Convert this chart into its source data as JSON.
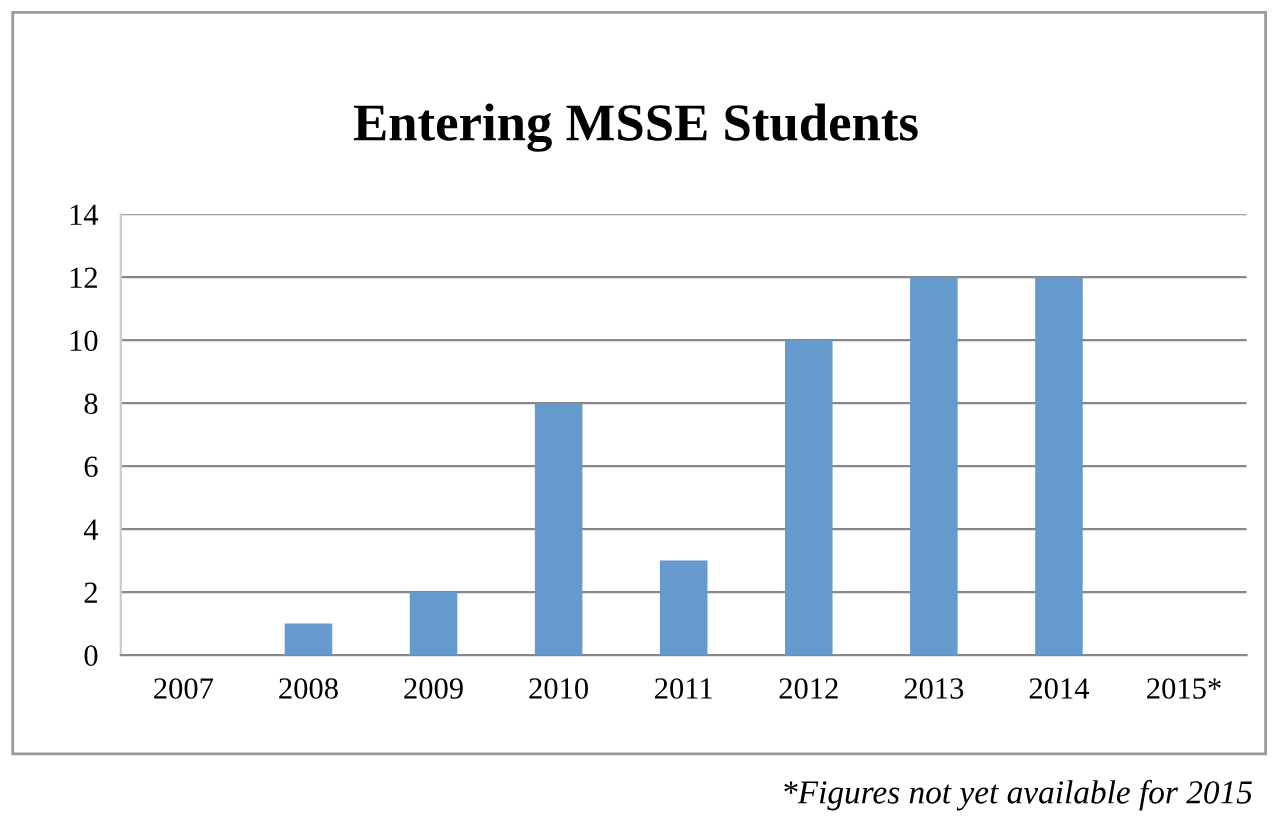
{
  "chart_data": {
    "type": "bar",
    "title": "Entering MSSE Students",
    "categories": [
      "2007",
      "2008",
      "2009",
      "2010",
      "2011",
      "2012",
      "2013",
      "2014",
      "2015*"
    ],
    "values": [
      0,
      1,
      2,
      8,
      3,
      10,
      12,
      12,
      null
    ],
    "color": "#6699cc",
    "ylim": [
      0,
      14
    ],
    "yticks": [
      0,
      2,
      4,
      6,
      8,
      10,
      12,
      14
    ],
    "grid": "y",
    "legend": false,
    "annotations": [
      "*Figures not yet available for 2015"
    ]
  }
}
